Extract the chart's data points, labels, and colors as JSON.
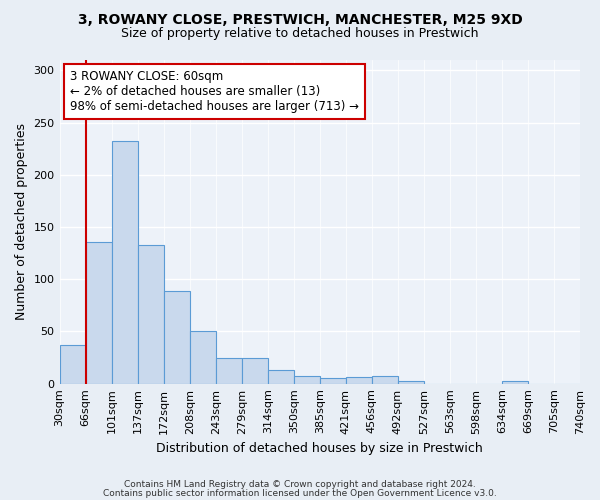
{
  "title_line1": "3, ROWANY CLOSE, PRESTWICH, MANCHESTER, M25 9XD",
  "title_line2": "Size of property relative to detached houses in Prestwich",
  "xlabel": "Distribution of detached houses by size in Prestwich",
  "ylabel": "Number of detached properties",
  "bar_values": [
    37,
    136,
    232,
    133,
    89,
    50,
    25,
    25,
    13,
    7,
    5,
    6,
    7,
    3,
    0,
    0,
    0,
    3,
    0,
    0
  ],
  "bin_labels": [
    "30sqm",
    "66sqm",
    "101sqm",
    "137sqm",
    "172sqm",
    "208sqm",
    "243sqm",
    "279sqm",
    "314sqm",
    "350sqm",
    "385sqm",
    "421sqm",
    "456sqm",
    "492sqm",
    "527sqm",
    "563sqm",
    "598sqm",
    "634sqm",
    "669sqm",
    "705sqm",
    "740sqm"
  ],
  "bar_color": "#c9d9ed",
  "bar_edge_color": "#5b9bd5",
  "annotation_text": "3 ROWANY CLOSE: 60sqm\n← 2% of detached houses are smaller (13)\n98% of semi-detached houses are larger (713) →",
  "vline_x": 1.0,
  "vline_color": "#cc0000",
  "annotation_box_facecolor": "#ffffff",
  "annotation_box_edgecolor": "#cc0000",
  "footer_line1": "Contains HM Land Registry data © Crown copyright and database right 2024.",
  "footer_line2": "Contains public sector information licensed under the Open Government Licence v3.0.",
  "ylim": [
    0,
    310
  ],
  "yticks": [
    0,
    50,
    100,
    150,
    200,
    250,
    300
  ],
  "bg_color": "#e8eef5",
  "plot_bg": "#edf2f9",
  "title_fontsize": 10,
  "subtitle_fontsize": 9,
  "ylabel_fontsize": 9,
  "xlabel_fontsize": 9,
  "tick_fontsize": 8,
  "footer_fontsize": 6.5
}
